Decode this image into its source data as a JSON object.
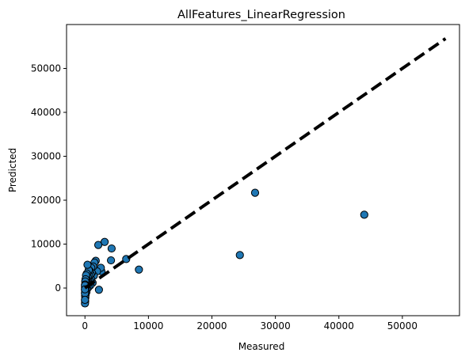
{
  "chart_data": {
    "type": "scatter",
    "title": "AllFeatures_LinearRegression",
    "xlabel": "Measured",
    "ylabel": "Predicted",
    "xlim": [
      -2900,
      59000
    ],
    "ylim": [
      -6300,
      60000
    ],
    "xticks": [
      0,
      10000,
      20000,
      30000,
      40000,
      50000
    ],
    "yticks": [
      0,
      10000,
      20000,
      30000,
      40000,
      50000
    ],
    "grid": false,
    "point_color": "#1f77b4",
    "point_edge_color": "#000000",
    "reference_line": {
      "x": [
        0,
        56800
      ],
      "y": [
        0,
        56800
      ],
      "style": "dashed",
      "color": "#000000"
    },
    "points": [
      [
        44000,
        16700
      ],
      [
        26800,
        21700
      ],
      [
        24400,
        7500
      ],
      [
        8500,
        4200
      ],
      [
        6500,
        6600
      ],
      [
        4200,
        9000
      ],
      [
        4100,
        6300
      ],
      [
        3100,
        10500
      ],
      [
        2600,
        3800
      ],
      [
        2500,
        4600
      ],
      [
        2100,
        9800
      ],
      [
        2200,
        -400
      ],
      [
        1900,
        3800
      ],
      [
        1700,
        6200
      ],
      [
        1500,
        5800
      ],
      [
        1400,
        2800
      ],
      [
        1300,
        4900
      ],
      [
        1200,
        1200
      ],
      [
        1100,
        3500
      ],
      [
        1000,
        4600
      ],
      [
        950,
        2100
      ],
      [
        900,
        3100
      ],
      [
        850,
        600
      ],
      [
        800,
        1600
      ],
      [
        750,
        3900
      ],
      [
        700,
        1100
      ],
      [
        650,
        2700
      ],
      [
        600,
        4100
      ],
      [
        550,
        200
      ],
      [
        500,
        1900
      ],
      [
        450,
        2500
      ],
      [
        400,
        5300
      ],
      [
        380,
        900
      ],
      [
        350,
        -200
      ],
      [
        320,
        1400
      ],
      [
        300,
        3300
      ],
      [
        280,
        500
      ],
      [
        250,
        2200
      ],
      [
        230,
        -900
      ],
      [
        210,
        1700
      ],
      [
        190,
        800
      ],
      [
        170,
        2900
      ],
      [
        150,
        300
      ],
      [
        130,
        1200
      ],
      [
        110,
        -1500
      ],
      [
        100,
        600
      ],
      [
        90,
        2000
      ],
      [
        80,
        -400
      ],
      [
        70,
        1000
      ],
      [
        60,
        -2200
      ],
      [
        50,
        400
      ],
      [
        45,
        1500
      ],
      [
        40,
        -800
      ],
      [
        35,
        100
      ],
      [
        30,
        -3000
      ],
      [
        25,
        800
      ],
      [
        20,
        -1800
      ],
      [
        15,
        -500
      ],
      [
        10,
        200
      ],
      [
        5,
        -3500
      ],
      [
        0,
        -1200
      ],
      [
        0,
        -2700
      ],
      [
        0,
        600
      ],
      [
        0,
        -300
      ]
    ]
  }
}
